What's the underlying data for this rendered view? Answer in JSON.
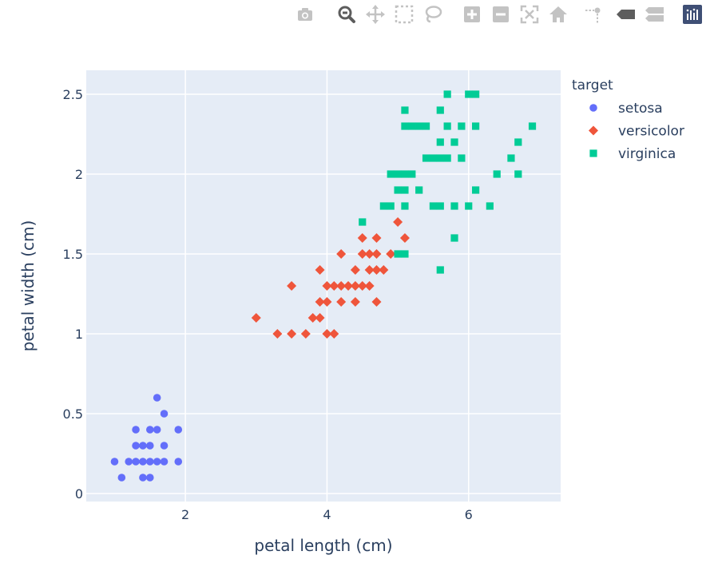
{
  "modebar": {
    "buttons": [
      {
        "name": "camera-icon",
        "title": "Download plot as a png"
      },
      {
        "name": "zoom-icon",
        "title": "Zoom",
        "active": true
      },
      {
        "name": "pan-icon",
        "title": "Pan"
      },
      {
        "name": "box-select-icon",
        "title": "Box Select"
      },
      {
        "name": "lasso-select-icon",
        "title": "Lasso Select"
      },
      {
        "name": "zoom-in-icon",
        "title": "Zoom in"
      },
      {
        "name": "zoom-out-icon",
        "title": "Zoom out"
      },
      {
        "name": "autoscale-icon",
        "title": "Autoscale"
      },
      {
        "name": "reset-axes-icon",
        "title": "Reset axes"
      },
      {
        "name": "spike-lines-icon",
        "title": "Toggle Spike Lines"
      },
      {
        "name": "hover-closest-icon",
        "title": "Show closest data on hover"
      },
      {
        "name": "hover-compare-icon",
        "title": "Compare data on hover"
      },
      {
        "name": "plotly-logo-icon",
        "title": "Produced with Plotly"
      }
    ]
  },
  "chart_data": {
    "type": "scatter",
    "title": "",
    "xlabel": "petal length (cm)",
    "ylabel": "petal width (cm)",
    "xlim": [
      0.6,
      7.3
    ],
    "ylim": [
      -0.05,
      2.65
    ],
    "xticks": [
      2,
      4,
      6
    ],
    "yticks": [
      0,
      0.5,
      1,
      1.5,
      2,
      2.5
    ],
    "grid": true,
    "legend": {
      "title": "target",
      "placement": "right"
    },
    "colors": {
      "plot_bg": "#e5ecf6",
      "grid": "#ffffff",
      "text": "#2a3f5f",
      "modebar_icon": "#c3c3c3",
      "modebar_active": "#5d5d5d",
      "logo_bg": "#3f4f75"
    },
    "series": [
      {
        "name": "setosa",
        "marker": "circle",
        "color": "#636efa",
        "points": [
          [
            1.0,
            0.2
          ],
          [
            1.1,
            0.1
          ],
          [
            1.2,
            0.2
          ],
          [
            1.3,
            0.2
          ],
          [
            1.3,
            0.3
          ],
          [
            1.3,
            0.4
          ],
          [
            1.4,
            0.1
          ],
          [
            1.4,
            0.2
          ],
          [
            1.4,
            0.3
          ],
          [
            1.5,
            0.1
          ],
          [
            1.5,
            0.2
          ],
          [
            1.5,
            0.3
          ],
          [
            1.5,
            0.4
          ],
          [
            1.6,
            0.2
          ],
          [
            1.6,
            0.4
          ],
          [
            1.6,
            0.6
          ],
          [
            1.7,
            0.2
          ],
          [
            1.7,
            0.3
          ],
          [
            1.7,
            0.5
          ],
          [
            1.9,
            0.2
          ],
          [
            1.9,
            0.4
          ]
        ]
      },
      {
        "name": "versicolor",
        "marker": "diamond",
        "color": "#ef553b",
        "points": [
          [
            3.0,
            1.1
          ],
          [
            3.3,
            1.0
          ],
          [
            3.5,
            1.0
          ],
          [
            3.5,
            1.3
          ],
          [
            3.7,
            1.0
          ],
          [
            3.8,
            1.1
          ],
          [
            3.9,
            1.1
          ],
          [
            3.9,
            1.2
          ],
          [
            3.9,
            1.4
          ],
          [
            4.0,
            1.0
          ],
          [
            4.0,
            1.2
          ],
          [
            4.0,
            1.3
          ],
          [
            4.1,
            1.0
          ],
          [
            4.1,
            1.3
          ],
          [
            4.2,
            1.2
          ],
          [
            4.2,
            1.3
          ],
          [
            4.2,
            1.5
          ],
          [
            4.3,
            1.3
          ],
          [
            4.4,
            1.2
          ],
          [
            4.4,
            1.3
          ],
          [
            4.4,
            1.4
          ],
          [
            4.5,
            1.3
          ],
          [
            4.5,
            1.5
          ],
          [
            4.5,
            1.6
          ],
          [
            4.6,
            1.3
          ],
          [
            4.6,
            1.4
          ],
          [
            4.6,
            1.5
          ],
          [
            4.7,
            1.2
          ],
          [
            4.7,
            1.4
          ],
          [
            4.7,
            1.5
          ],
          [
            4.7,
            1.6
          ],
          [
            4.8,
            1.4
          ],
          [
            4.9,
            1.5
          ],
          [
            5.0,
            1.7
          ],
          [
            5.1,
            1.6
          ]
        ]
      },
      {
        "name": "virginica",
        "marker": "square",
        "color": "#00cc96",
        "points": [
          [
            4.5,
            1.7
          ],
          [
            4.8,
            1.8
          ],
          [
            4.9,
            1.8
          ],
          [
            4.9,
            2.0
          ],
          [
            5.0,
            1.5
          ],
          [
            5.0,
            1.9
          ],
          [
            5.0,
            2.0
          ],
          [
            5.1,
            1.5
          ],
          [
            5.1,
            1.8
          ],
          [
            5.1,
            1.9
          ],
          [
            5.1,
            2.0
          ],
          [
            5.1,
            2.3
          ],
          [
            5.1,
            2.4
          ],
          [
            5.2,
            2.0
          ],
          [
            5.2,
            2.3
          ],
          [
            5.3,
            1.9
          ],
          [
            5.3,
            2.3
          ],
          [
            5.4,
            2.1
          ],
          [
            5.4,
            2.3
          ],
          [
            5.5,
            1.8
          ],
          [
            5.5,
            2.1
          ],
          [
            5.6,
            1.4
          ],
          [
            5.6,
            1.8
          ],
          [
            5.6,
            2.1
          ],
          [
            5.6,
            2.2
          ],
          [
            5.6,
            2.4
          ],
          [
            5.7,
            2.1
          ],
          [
            5.7,
            2.3
          ],
          [
            5.7,
            2.5
          ],
          [
            5.8,
            1.6
          ],
          [
            5.8,
            1.8
          ],
          [
            5.8,
            2.2
          ],
          [
            5.9,
            2.1
          ],
          [
            5.9,
            2.3
          ],
          [
            6.0,
            1.8
          ],
          [
            6.0,
            2.5
          ],
          [
            6.1,
            1.9
          ],
          [
            6.1,
            2.3
          ],
          [
            6.1,
            2.5
          ],
          [
            6.3,
            1.8
          ],
          [
            6.4,
            2.0
          ],
          [
            6.6,
            2.1
          ],
          [
            6.7,
            2.0
          ],
          [
            6.7,
            2.2
          ],
          [
            6.9,
            2.3
          ]
        ]
      }
    ]
  }
}
